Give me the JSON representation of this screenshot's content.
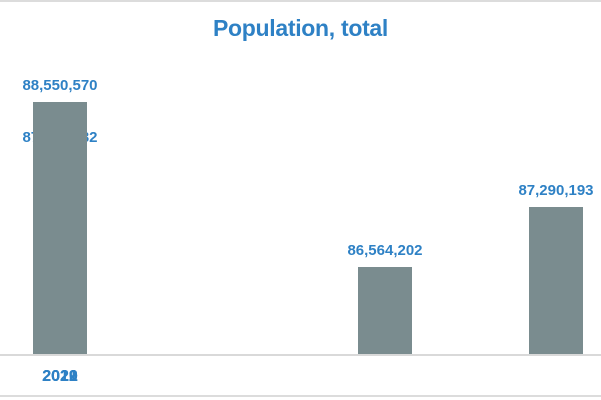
{
  "chart_data": {
    "type": "bar",
    "title": "Population, total",
    "categories": [
      "2019",
      "2020",
      "2021",
      "2022"
    ],
    "values": [
      86564202,
      87290193,
      87923432,
      88550570
    ],
    "value_labels": [
      "86,564,202",
      "87,290,193",
      "87,923,432",
      "88,550,570"
    ],
    "xlabel": "",
    "ylabel": "",
    "ylim": [
      85500000,
      88600000
    ],
    "grid": false,
    "legend": false,
    "y_axis_visible": false,
    "colors": {
      "bar": "#7A8C8F",
      "label_text": "#2E81C5",
      "title_text": "#2E81C5",
      "axis_line": "#D9D9D9",
      "border_line": "#DCDCDC",
      "background": "#FFFFFF"
    }
  }
}
